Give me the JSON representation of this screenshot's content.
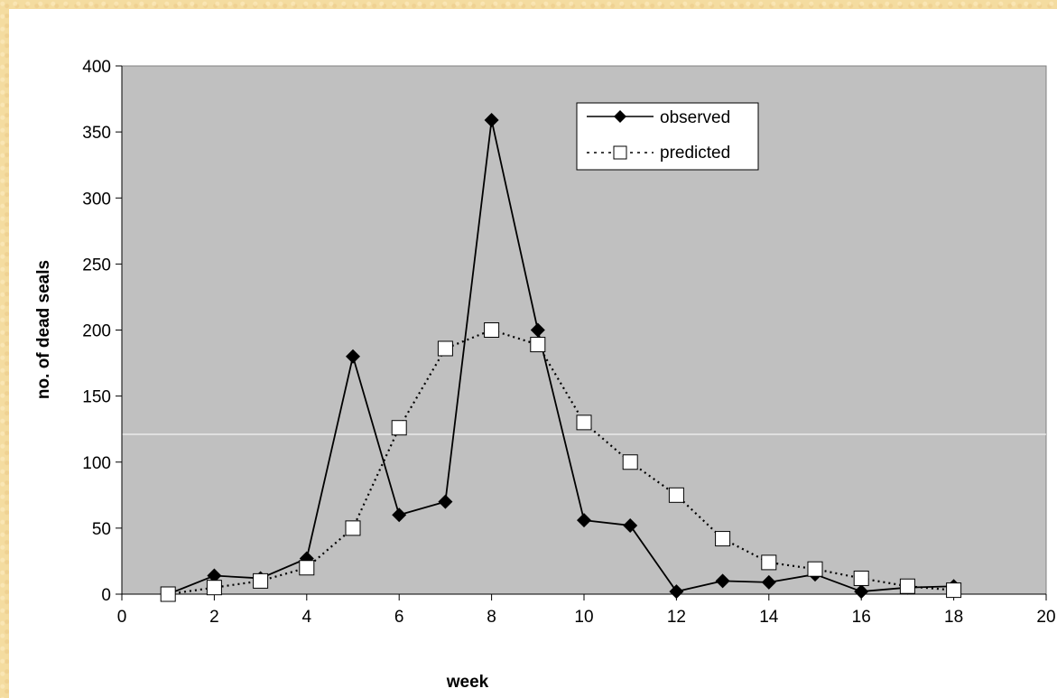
{
  "chart_data": {
    "type": "line",
    "title": "",
    "xlabel": "week",
    "ylabel": "no. of dead seals",
    "xlim": [
      0,
      20
    ],
    "ylim": [
      0,
      400
    ],
    "x_ticks": [
      0,
      2,
      4,
      6,
      8,
      10,
      12,
      14,
      16,
      18,
      20
    ],
    "y_ticks": [
      0,
      50,
      100,
      150,
      200,
      250,
      300,
      350,
      400
    ],
    "x_tick_labels": [
      "0",
      "2",
      "4",
      "6",
      "8",
      "10",
      "12",
      "14",
      "16",
      "18",
      "20"
    ],
    "y_tick_labels": [
      "0",
      "50",
      "100",
      "150",
      "200",
      "250",
      "300",
      "350",
      "400"
    ],
    "grid": false,
    "plot_background": "#c0c0c0",
    "legend_position": "top-center",
    "series": [
      {
        "name": "observed",
        "marker": "filled-diamond",
        "line_style": "solid",
        "color": "#000000",
        "x": [
          1,
          2,
          3,
          4,
          5,
          6,
          7,
          8,
          9,
          10,
          11,
          12,
          13,
          14,
          15,
          16,
          17,
          18
        ],
        "y": [
          0,
          14,
          12,
          27,
          180,
          60,
          70,
          359,
          200,
          56,
          52,
          2,
          10,
          9,
          15,
          2,
          5,
          6
        ]
      },
      {
        "name": "predicted",
        "marker": "open-square",
        "line_style": "dotted",
        "color": "#000000",
        "x": [
          1,
          2,
          3,
          4,
          5,
          6,
          7,
          8,
          9,
          10,
          11,
          12,
          13,
          14,
          15,
          16,
          17,
          18
        ],
        "y": [
          0,
          5,
          10,
          20,
          50,
          126,
          186,
          200,
          189,
          130,
          100,
          75,
          42,
          24,
          19,
          12,
          6,
          3
        ]
      }
    ]
  }
}
